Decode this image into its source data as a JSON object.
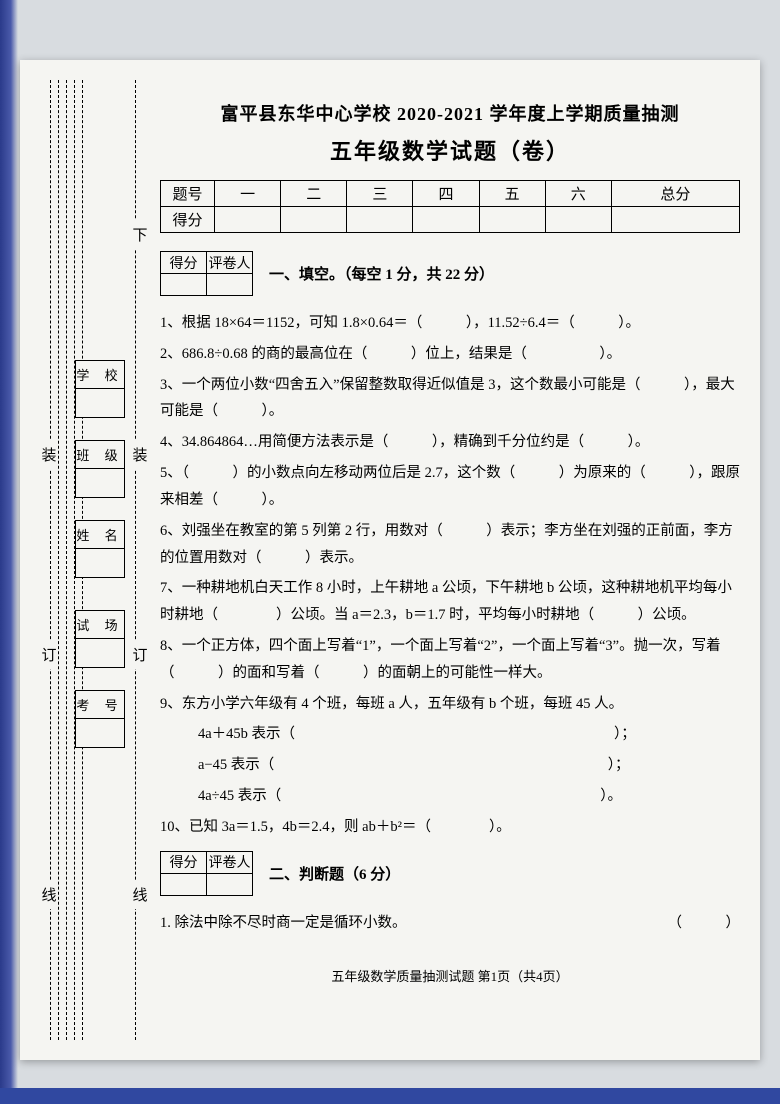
{
  "header": {
    "main_title": "富平县东华中心学校 2020-2021 学年度上学期质量抽测",
    "sub_title": "五年级数学试题（卷）"
  },
  "score_table": {
    "row_label_1": "题号",
    "row_label_2": "得分",
    "cols": [
      "一",
      "二",
      "三",
      "四",
      "五",
      "六",
      "总分"
    ]
  },
  "section_box": {
    "c1": "得分",
    "c2": "评卷人"
  },
  "section1": {
    "title": "一、填空。（每空 1 分，共 22 分）",
    "q1": "1、根据 18×64＝1152，可知 1.8×0.64＝（　　　），11.52÷6.4＝（　　　）。",
    "q2": "2、686.8÷0.68 的商的最高位在（　　　）位上，结果是（　　　　　）。",
    "q3": "3、一个两位小数“四舍五入”保留整数取得近似值是 3，这个数最小可能是（　　　），最大可能是（　　　）。",
    "q4": "4、34.864864…用简便方法表示是（　　　），精确到千分位约是（　　　）。",
    "q5": "5、（　　　）的小数点向左移动两位后是 2.7，这个数（　　　）为原来的（　　　），跟原来相差（　　　）。",
    "q6": "6、刘强坐在教室的第 5 列第 2 行，用数对（　　　）表示；李方坐在刘强的正前面，李方的位置用数对（　　　）表示。",
    "q7": "7、一种耕地机白天工作 8 小时，上午耕地 a 公顷，下午耕地 b 公顷，这种耕地机平均每小时耕地（　　　　）公顷。当 a＝2.3，b＝1.7 时，平均每小时耕地（　　　）公顷。",
    "q8": "8、一个正方体，四个面上写着“1”，一个面上写着“2”，一个面上写着“3”。抛一次，写着（　　　）的面和写着（　　　）的面朝上的可能性一样大。",
    "q9": "9、东方小学六年级有 4 个班，每班 a 人，五年级有 b 个班，每班 45 人。",
    "q9a": "4a＋45b 表示（　　　　　　　　　　　　　　　　　　　　　　）；",
    "q9b": "a−45 表示（　　　　　　　　　　　　　　　　　　　　　　　）；",
    "q9c": "4a÷45 表示（　　　　　　　　　　　　　　　　　　　　　　）。",
    "q10": "10、已知 3a＝1.5，4b＝2.4，则 ab＋b²＝（　　　　）。"
  },
  "section2": {
    "title": "二、判断题（6 分）",
    "q1": "1. 除法中除不尽时商一定是循环小数。",
    "q1_paren": "（　　　）"
  },
  "binding": {
    "xia": "下",
    "zhuang": "装",
    "ding": "订",
    "xian": "线",
    "school": "学 校",
    "class": "班 级",
    "name": "姓 名",
    "room": "试 场",
    "num": "考 号"
  },
  "footer": "五年级数学质量抽测试题 第1页（共4页）",
  "colors": {
    "paper_bg": "#f5f5f2",
    "page_bg": "#d8dce0",
    "text": "#000000",
    "border": "#000000",
    "blue_edge": "#3048a0"
  }
}
